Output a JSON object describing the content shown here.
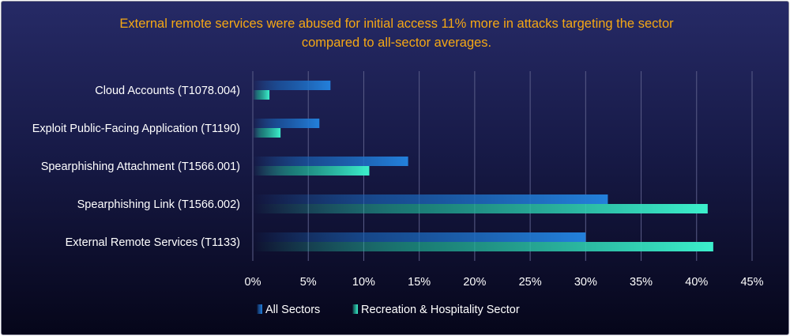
{
  "chart_data": {
    "type": "bar",
    "orientation": "horizontal",
    "title_lines": [
      "External remote services were abused for initial access 11% more in attacks targeting the sector",
      "compared to all-sector averages."
    ],
    "categories": [
      "Cloud Accounts (T1078.004)",
      "Exploit Public-Facing Application (T1190)",
      "Spearphishing Attachment (T1566.001)",
      "Spearphishing Link (T1566.002)",
      "External Remote Services (T1133)"
    ],
    "series": [
      {
        "name": "All Sectors",
        "values": [
          7,
          6,
          14,
          32,
          30
        ]
      },
      {
        "name": "Recreation & Hospitality  Sector",
        "values": [
          1.5,
          2.5,
          10.5,
          41,
          41.5
        ]
      }
    ],
    "xlim": [
      0,
      45
    ],
    "xticks": [
      0,
      5,
      10,
      15,
      20,
      25,
      30,
      35,
      40,
      45
    ],
    "tick_suffix": "%",
    "grid": "vertical",
    "legend_position": "bottom",
    "colors": {
      "all_sectors": "#1f78d1",
      "recreation": "#33e8c4",
      "title": "#f5a814",
      "background": "#1a1d4e"
    }
  }
}
